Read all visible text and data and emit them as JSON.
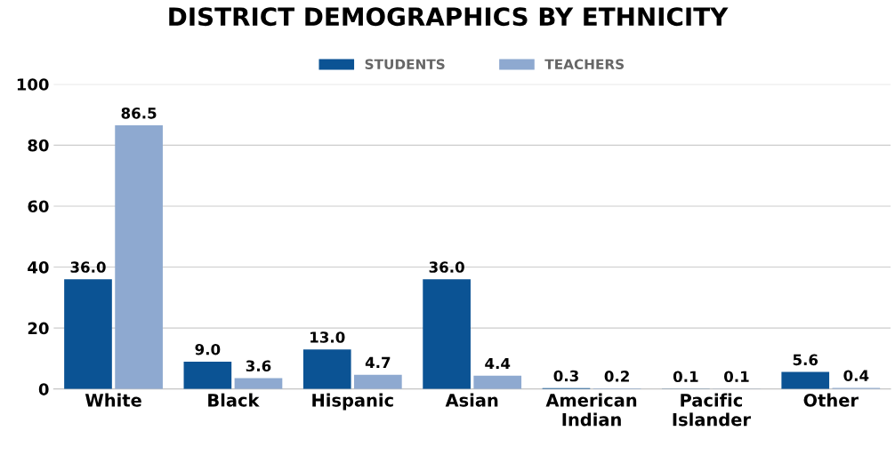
{
  "chart_data": {
    "type": "bar",
    "title": "DISTRICT DEMOGRAPHICS BY ETHNICITY",
    "categories": [
      "White",
      "Black",
      "Hispanic",
      "Asian",
      "American\nIndian",
      "Pacific\nIslander",
      "Other"
    ],
    "series": [
      {
        "name": "STUDENTS",
        "color": "#0b5394",
        "values": [
          36.0,
          9.0,
          13.0,
          36.0,
          0.3,
          0.1,
          5.6
        ],
        "value_labels": [
          "36.0",
          "9.0",
          "13.0",
          "36.0",
          "0.3",
          "0.1",
          "5.6"
        ]
      },
      {
        "name": "TEACHERS",
        "color": "#8ea9d0",
        "values": [
          86.5,
          3.6,
          4.7,
          4.4,
          0.2,
          0.1,
          0.4
        ],
        "value_labels": [
          "86.5",
          "3.6",
          "4.7",
          "4.4",
          "0.2",
          "0.1",
          "0.4"
        ]
      }
    ],
    "ylim": [
      0,
      100
    ],
    "yticks": [
      0,
      20,
      40,
      60,
      80,
      100
    ],
    "grid": "y",
    "legend": "top"
  }
}
